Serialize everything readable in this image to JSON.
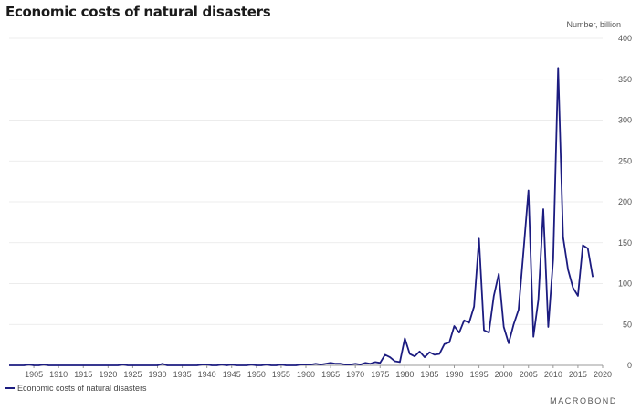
{
  "title": "Economic costs of natural disasters",
  "unit_label": "Number, billion",
  "legend": "Economic costs of natural disasters",
  "brand": "MACROBOND",
  "chart_data": {
    "type": "line",
    "title": "Economic costs of natural disasters",
    "ylabel": "Number, billion",
    "xlim": [
      1900,
      2020
    ],
    "ylim": [
      0,
      400
    ],
    "x_ticks": [
      1905,
      1910,
      1915,
      1920,
      1925,
      1930,
      1935,
      1940,
      1945,
      1950,
      1955,
      1960,
      1965,
      1970,
      1975,
      1980,
      1985,
      1990,
      1995,
      2000,
      2005,
      2010,
      2015,
      2020
    ],
    "y_ticks": [
      0,
      50,
      100,
      150,
      200,
      250,
      300,
      350,
      400
    ],
    "grid": "horizontal",
    "legend_position": "bottom-left",
    "line_color": "#1c1c80",
    "series": [
      {
        "name": "Economic costs of natural disasters",
        "x": [
          1900,
          1901,
          1902,
          1903,
          1904,
          1905,
          1906,
          1907,
          1908,
          1909,
          1910,
          1911,
          1912,
          1913,
          1914,
          1915,
          1916,
          1917,
          1918,
          1919,
          1920,
          1921,
          1922,
          1923,
          1924,
          1925,
          1926,
          1927,
          1928,
          1929,
          1930,
          1931,
          1932,
          1933,
          1934,
          1935,
          1936,
          1937,
          1938,
          1939,
          1940,
          1941,
          1942,
          1943,
          1944,
          1945,
          1946,
          1947,
          1948,
          1949,
          1950,
          1951,
          1952,
          1953,
          1954,
          1955,
          1956,
          1957,
          1958,
          1959,
          1960,
          1961,
          1962,
          1963,
          1964,
          1965,
          1966,
          1967,
          1968,
          1969,
          1970,
          1971,
          1972,
          1973,
          1974,
          1975,
          1976,
          1977,
          1978,
          1979,
          1980,
          1981,
          1982,
          1983,
          1984,
          1985,
          1986,
          1987,
          1988,
          1989,
          1990,
          1991,
          1992,
          1993,
          1994,
          1995,
          1996,
          1997,
          1998,
          1999,
          2000,
          2001,
          2002,
          2003,
          2004,
          2005,
          2006,
          2007,
          2008,
          2009,
          2010,
          2011,
          2012,
          2013,
          2014,
          2015,
          2016,
          2017,
          2018
        ],
        "values": [
          0,
          0,
          0,
          0,
          1,
          0,
          0,
          1,
          0,
          0,
          0,
          0,
          0,
          0,
          0,
          0,
          0,
          0,
          0,
          0,
          0,
          0,
          0,
          1,
          0,
          0,
          0,
          0,
          0,
          0,
          0,
          2,
          0,
          0,
          0,
          0,
          0,
          0,
          0,
          1,
          1,
          0,
          0,
          1,
          0,
          1,
          0,
          0,
          0,
          1,
          0,
          0,
          1,
          0,
          0,
          1,
          0,
          0,
          0,
          1,
          1,
          1,
          2,
          1,
          2,
          3,
          2,
          2,
          1,
          1,
          2,
          1,
          3,
          2,
          4,
          3,
          13,
          10,
          5,
          4,
          33,
          14,
          11,
          17,
          10,
          16,
          13,
          14,
          26,
          28,
          48,
          40,
          55,
          52,
          72,
          155,
          43,
          40,
          85,
          112,
          47,
          27,
          50,
          68,
          140,
          214,
          35,
          80,
          191,
          47,
          130,
          364,
          157,
          117,
          95,
          85,
          147,
          143,
          108
        ]
      }
    ]
  }
}
